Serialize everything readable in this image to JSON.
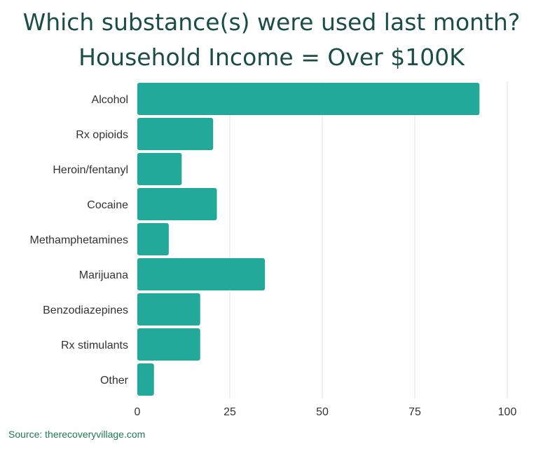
{
  "title_lines": [
    "Which substance(s) were used last month?",
    "Household Income = Over $100K"
  ],
  "source": "Source: therecoveryvillage.com",
  "chart_data": {
    "type": "bar",
    "orientation": "horizontal",
    "title": "Which substance(s) were used last month? Household Income = Over $100K",
    "categories": [
      "Alcohol",
      "Rx opioids",
      "Heroin/fentanyl",
      "Cocaine",
      "Methamphetamines",
      "Marijuana",
      "Benzodiazepines",
      "Rx stimulants",
      "Other"
    ],
    "values": [
      92.5,
      20.5,
      12,
      21.5,
      8.5,
      34.5,
      17,
      17,
      4.5
    ],
    "xlim": [
      0,
      100
    ],
    "xticks": [
      0,
      25,
      50,
      75,
      100
    ],
    "xlabel": "",
    "ylabel": "",
    "grid": true,
    "bar_color": "#22a999",
    "grid_color": "#e3e3e3"
  }
}
